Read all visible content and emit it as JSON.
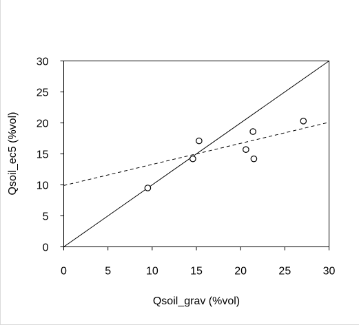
{
  "chart_data": {
    "type": "scatter",
    "title": "",
    "xlabel": "Qsoil_grav (%vol)",
    "ylabel": "Qsoil_ec5 (%vol)",
    "xlim": [
      0,
      30
    ],
    "ylim": [
      0,
      30
    ],
    "xticks": [
      0,
      5,
      10,
      15,
      20,
      25,
      30
    ],
    "yticks": [
      0,
      5,
      10,
      15,
      20,
      25,
      30
    ],
    "grid": false,
    "legend": "none",
    "series": [
      {
        "marker": "open-circle",
        "points": [
          {
            "x": 9.5,
            "y": 9.5
          },
          {
            "x": 14.6,
            "y": 14.2
          },
          {
            "x": 15.3,
            "y": 17.1
          },
          {
            "x": 20.6,
            "y": 15.7
          },
          {
            "x": 21.4,
            "y": 18.6
          },
          {
            "x": 21.5,
            "y": 14.2
          },
          {
            "x": 27.1,
            "y": 20.3
          }
        ]
      }
    ],
    "lines": [
      {
        "style": "solid",
        "x": [
          0,
          30
        ],
        "y": [
          0,
          30
        ]
      },
      {
        "style": "dashed",
        "x": [
          0,
          30
        ],
        "y": [
          9.9,
          20.1
        ]
      }
    ],
    "colors": {
      "marks": "#000000",
      "background": "#ffffff"
    }
  }
}
